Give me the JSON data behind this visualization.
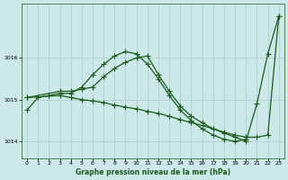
{
  "xlabel": "Graphe pression niveau de la mer (hPa)",
  "background_color": "#cce8e8",
  "grid_color": "#aacccc",
  "line_color": "#1a5c1a",
  "xlim": [
    -0.5,
    23.5
  ],
  "ylim": [
    1013.6,
    1017.3
  ],
  "yticks": [
    1014,
    1015,
    1016
  ],
  "xticks": [
    0,
    1,
    2,
    3,
    4,
    5,
    6,
    7,
    8,
    9,
    10,
    11,
    12,
    13,
    14,
    15,
    16,
    17,
    18,
    19,
    20,
    21,
    22,
    23
  ],
  "series1_x": [
    0,
    1,
    2,
    3,
    4,
    5,
    6,
    7,
    8,
    9,
    10,
    11,
    12,
    13,
    14,
    15,
    16,
    17,
    18,
    19,
    20
  ],
  "series1_y": [
    1014.75,
    1015.05,
    1015.1,
    1015.15,
    1015.15,
    1015.3,
    1015.6,
    1015.85,
    1016.05,
    1016.15,
    1016.1,
    1015.85,
    1015.5,
    1015.1,
    1014.75,
    1014.5,
    1014.3,
    1014.15,
    1014.05,
    1014.0,
    1014.05
  ],
  "series2_x": [
    0,
    3,
    4,
    5,
    6,
    7,
    8,
    9,
    10,
    11,
    12,
    13,
    14,
    15,
    16,
    17,
    18,
    19,
    20,
    21,
    22,
    23
  ],
  "series2_y": [
    1015.05,
    1015.2,
    1015.2,
    1015.25,
    1015.3,
    1015.55,
    1015.75,
    1015.9,
    1016.0,
    1016.05,
    1015.6,
    1015.2,
    1014.85,
    1014.6,
    1014.45,
    1014.3,
    1014.2,
    1014.1,
    1014.0,
    1014.9,
    1016.1,
    1017.0
  ],
  "series3_x": [
    0,
    3,
    4,
    5,
    6,
    7,
    8,
    9,
    10,
    11,
    12,
    13,
    14,
    15,
    16,
    17,
    18,
    19,
    20,
    21,
    22,
    23
  ],
  "series3_y": [
    1015.05,
    1015.1,
    1015.05,
    1015.0,
    1014.97,
    1014.93,
    1014.87,
    1014.82,
    1014.78,
    1014.72,
    1014.67,
    1014.6,
    1014.52,
    1014.45,
    1014.38,
    1014.3,
    1014.22,
    1014.15,
    1014.1,
    1014.1,
    1014.15,
    1017.0
  ]
}
